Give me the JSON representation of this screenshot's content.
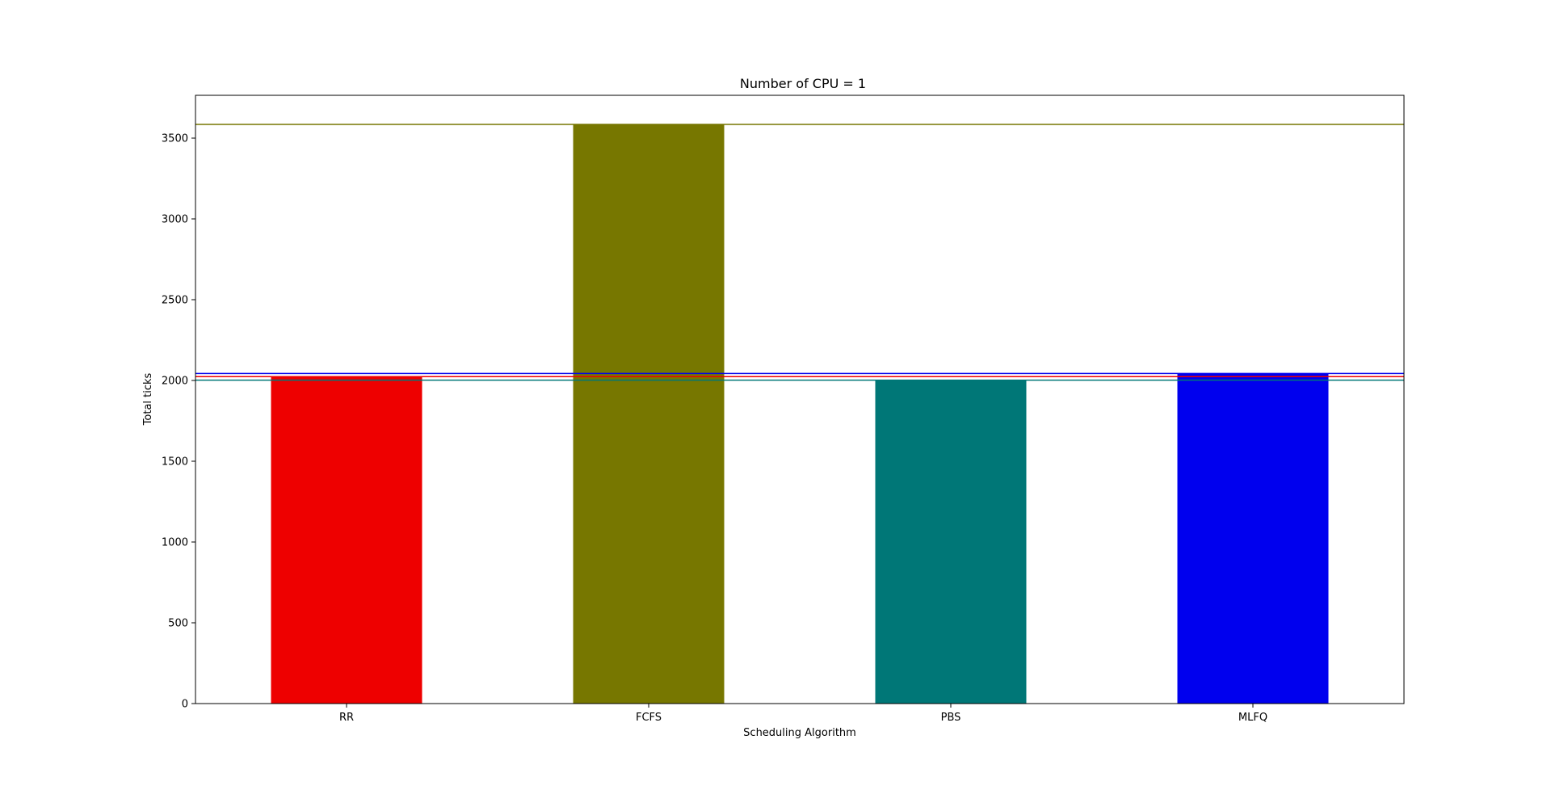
{
  "chart_data": {
    "type": "bar",
    "title": "Number of CPU = 1",
    "xlabel": "Scheduling Algorithm",
    "ylabel": "Total ticks",
    "categories": [
      "RR",
      "FCFS",
      "PBS",
      "MLFQ"
    ],
    "values": [
      2024,
      3585,
      2002,
      2043
    ],
    "colors": [
      "#ee0000",
      "#777700",
      "#007777",
      "#0000ee"
    ],
    "reference_lines": [
      {
        "value": 2024,
        "color": "#ee0000"
      },
      {
        "value": 3585,
        "color": "#777700"
      },
      {
        "value": 2002,
        "color": "#007777"
      },
      {
        "value": 2043,
        "color": "#0000ee"
      }
    ],
    "ylim": [
      0,
      3765
    ],
    "yticks": [
      "0",
      "500",
      "1000",
      "1500",
      "2000",
      "2500",
      "3000",
      "3500"
    ],
    "ytick_values": [
      0,
      500,
      1000,
      1500,
      2000,
      2500,
      3000,
      3500
    ],
    "grid": false,
    "legend": "none"
  }
}
